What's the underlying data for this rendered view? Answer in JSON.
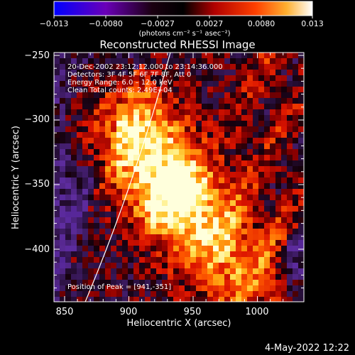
{
  "colorbar": {
    "tick_labels": [
      "−0.013",
      "−0.0080",
      "−0.0027",
      "0.0027",
      "0.0080",
      "0.013"
    ],
    "units": "(photons cm⁻² s⁻¹ asec⁻²)",
    "colors": [
      "#0000ff",
      "#7000b0",
      "#000000",
      "#a00000",
      "#ff2000",
      "#ff9000",
      "#ffff80",
      "#ffffff"
    ]
  },
  "title": "Reconstructed RHESSI Image",
  "info": {
    "line1": "20-Dec-2002 23:12:12.000 to 23:14:36.000",
    "line2": "Detectors: 3F 4F 5F 6F 7F 8F, Att 0",
    "line3": "Energy Range: 6.0 – 12.0 keV",
    "line4": "Clean     Total counts: 2.49E+04"
  },
  "peak_label": "Position of Peak = [941,-351]",
  "axes": {
    "xlabel": "Heliocentric X (arcsec)",
    "ylabel": "Heliocentric Y (arcsec)",
    "x_ticks": [
      "850",
      "900",
      "950",
      "1000"
    ],
    "y_ticks": [
      "−250",
      "−300",
      "−350",
      "−400"
    ]
  },
  "footer_date": "4-May-2022 12:22"
}
